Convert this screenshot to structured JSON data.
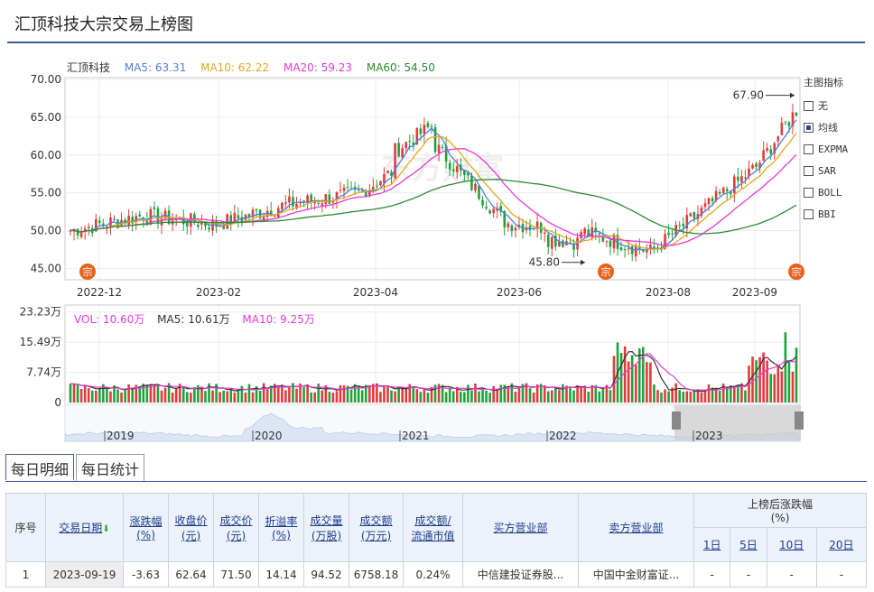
{
  "page": {
    "title": "汇顶科技大宗交易上榜图"
  },
  "watermark": "东方财富",
  "legend": {
    "stock": "汇顶科技",
    "ma5": "MA5: 63.31",
    "ma10": "MA10: 62.22",
    "ma20": "MA20: 59.23",
    "ma60": "MA60: 54.50"
  },
  "vol_legend": {
    "vol": "VOL: 10.60万",
    "ma5": "MA5: 10.61万",
    "ma10": "MA10: 9.25万"
  },
  "colors": {
    "ma5": "#4e7ed9",
    "ma10": "#e0a81d",
    "ma20": "#e53ad8",
    "ma60": "#2a8c2f",
    "up": "#e23b3b",
    "down": "#1fa23a",
    "marker": "#e8621c"
  },
  "price_axis": {
    "ticks": [
      "70.00",
      "65.00",
      "60.00",
      "55.00",
      "50.00",
      "45.00"
    ],
    "min": 43.5,
    "max": 70
  },
  "vol_axis": {
    "ticks": [
      "23.23万",
      "15.49万",
      "7.74万",
      "0"
    ],
    "max": 23.23
  },
  "date_ticks": [
    "2022-12",
    "2023-02",
    "2023-04",
    "2023-06",
    "2023-08",
    "2023-09"
  ],
  "annotations": {
    "high": "67.90",
    "low": "45.80"
  },
  "marker_label": "宗",
  "navigator_years": [
    "2019",
    "2020",
    "2021",
    "2022",
    "2023"
  ],
  "indicator_panel": {
    "title": "主图指标",
    "items": [
      {
        "label": "无",
        "checked": false
      },
      {
        "label": "均线",
        "checked": true
      },
      {
        "label": "EXPMA",
        "checked": false
      },
      {
        "label": "SAR",
        "checked": false
      },
      {
        "label": "BOLL",
        "checked": false
      },
      {
        "label": "BBI",
        "checked": false
      }
    ]
  },
  "tabs": [
    "每日明细",
    "每日统计"
  ],
  "table": {
    "headers": {
      "seq": "序号",
      "date": "交易日期",
      "change": "涨跌幅\n(%)",
      "close": "收盘价\n(元)",
      "deal_price": "成交价\n(元)",
      "premium": "折溢率\n(%)",
      "volume": "成交量\n(万股)",
      "amount": "成交额\n(万元)",
      "ratio": "成交额/\n流通市值",
      "buyer": "买方营业部",
      "seller": "卖方营业部",
      "after": "上榜后涨跌幅\n(%)",
      "d1": "1日",
      "d5": "5日",
      "d10": "10日",
      "d20": "20日"
    },
    "rows": [
      {
        "seq": "1",
        "date": "2023-09-19",
        "change": "-3.63",
        "close": "62.64",
        "deal_price": "71.50",
        "premium": "14.14",
        "volume": "94.52",
        "amount": "6758.18",
        "ratio": "0.24%",
        "buyer": "中信建投证券股...",
        "seller": "中国中金财富证...",
        "d1": "-",
        "d5": "-",
        "d10": "-",
        "d20": "-"
      }
    ]
  },
  "chart_data": {
    "type": "candlestick",
    "title": "汇顶科技",
    "period": "2022-11 to 2023-09 (daily)",
    "ylim": [
      43.5,
      70
    ],
    "close_anchors": [
      {
        "x": "2022-11",
        "close": 50.0
      },
      {
        "x": "2022-12",
        "close": 52.0
      },
      {
        "x": "2023-01",
        "close": 50.8
      },
      {
        "x": "2023-02",
        "close": 53.5
      },
      {
        "x": "2023-03",
        "close": 55.0
      },
      {
        "x": "2023-04",
        "close": 61.5
      },
      {
        "x": "2023-05",
        "close": 51.0
      },
      {
        "x": "2023-06",
        "close": 50.0
      },
      {
        "x": "2023-07",
        "close": 47.2
      },
      {
        "x": "2023-08",
        "close": 55.0
      },
      {
        "x": "2023-09",
        "close": 62.64
      }
    ],
    "annotations": [
      {
        "label": "67.90",
        "type": "high"
      },
      {
        "label": "45.80",
        "type": "low"
      }
    ],
    "block_trade_markers": 3,
    "ma_latest": {
      "MA5": 63.31,
      "MA10": 62.22,
      "MA20": 59.23,
      "MA60": 54.5
    },
    "volume_latest": {
      "VOL": "10.60万",
      "MA5": "10.61万",
      "MA10": "9.25万"
    }
  }
}
